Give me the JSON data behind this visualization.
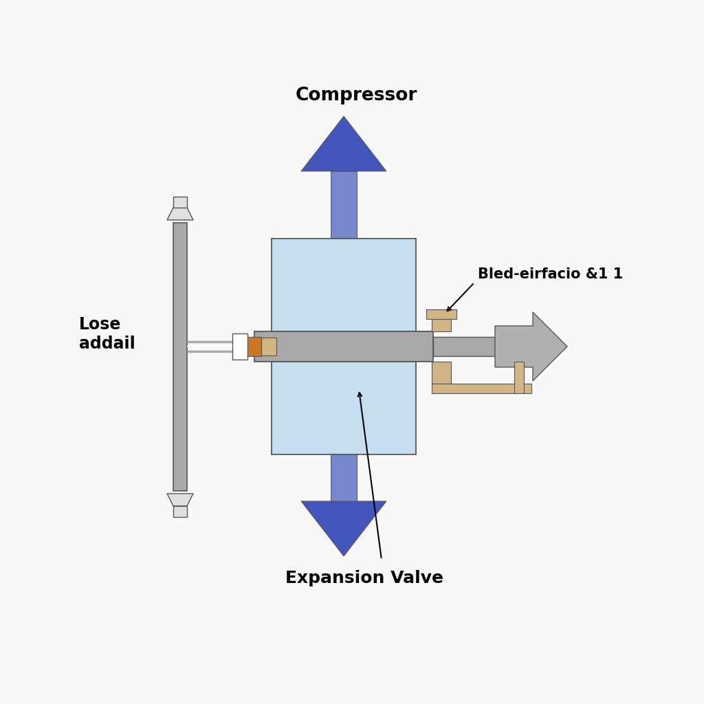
{
  "bg_color": "#f8f8f8",
  "compressor_label": "Compressor",
  "expansion_valve_label": "Expansion Valve",
  "bled_label": "Bled-eirfacio &1 1",
  "lose_addail_label": "Lose\naddail",
  "arrow_blue_dark": "#4455bb",
  "arrow_blue_shaft": "#7788cc",
  "arrow_right_color": "#b0b0b0",
  "box_light_blue": "#c5dff0",
  "box_gray": "#a8a8a8",
  "pipe_tan": "#d4b483",
  "pipe_orange": "#cc7722",
  "pipe_gray": "#aaaaaa",
  "pipe_white": "#e0e0e0",
  "outline_color": "#555555"
}
